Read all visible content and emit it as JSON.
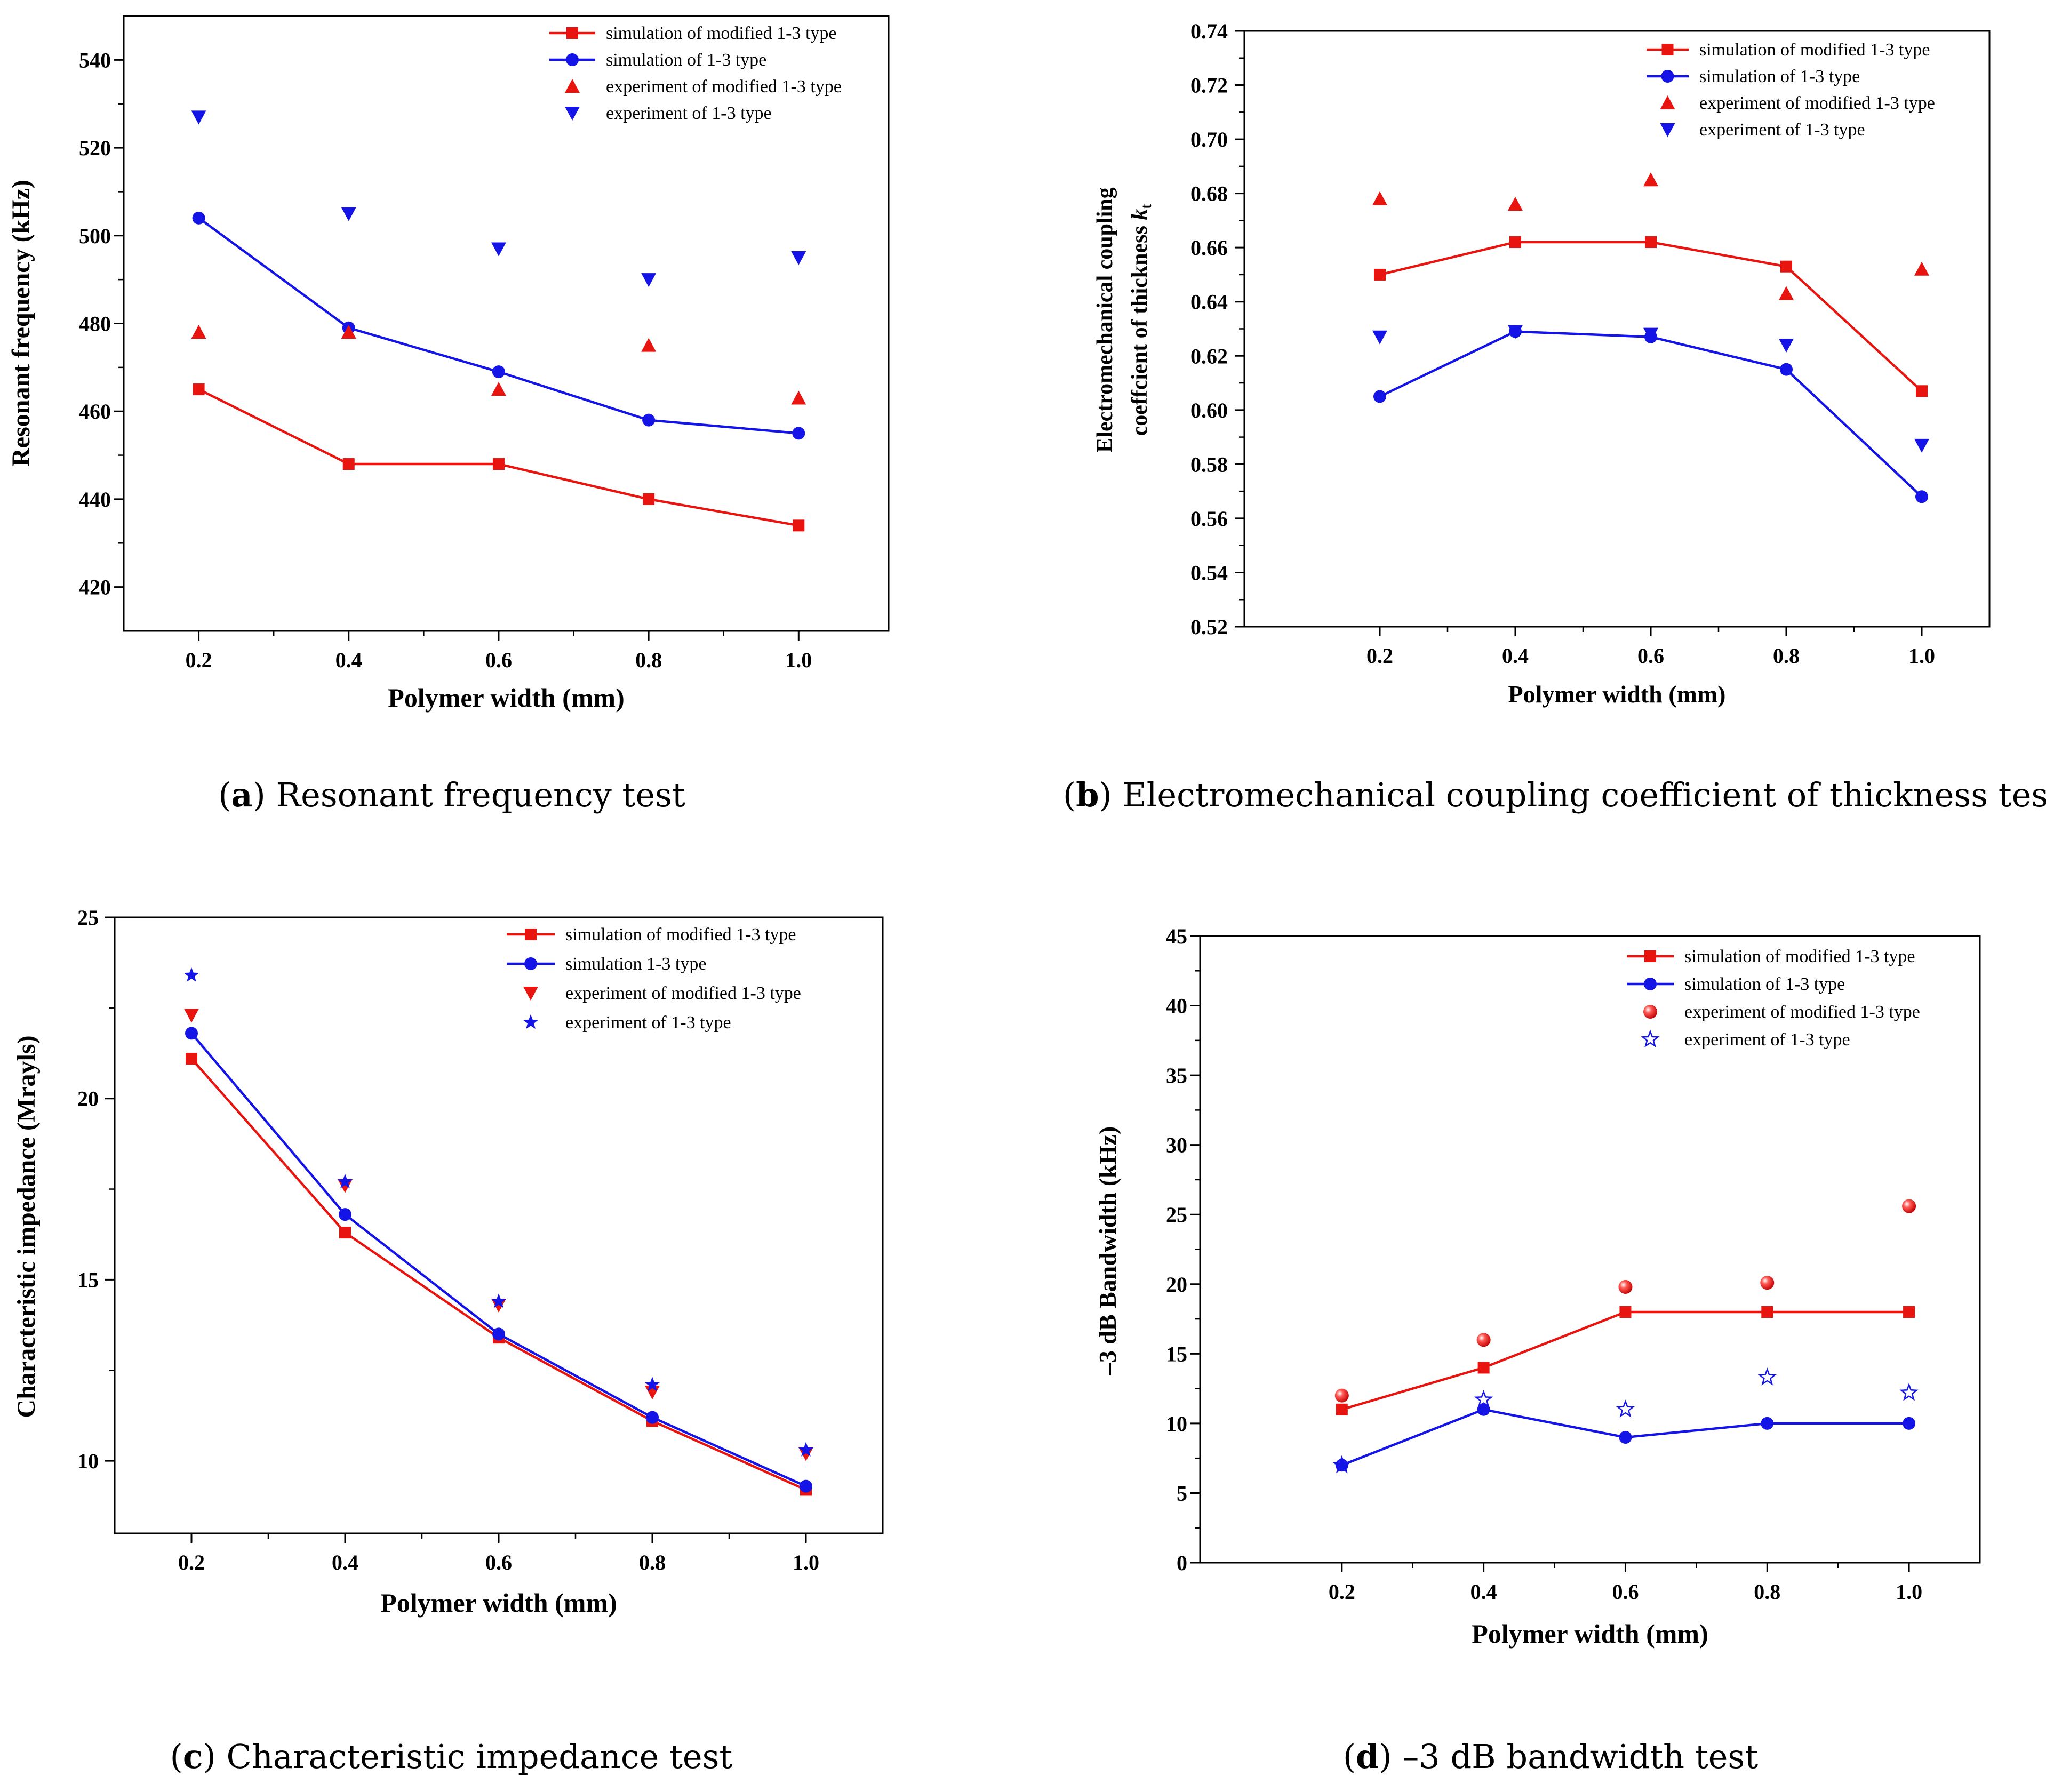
{
  "colors": {
    "red": "#e8140f",
    "blue": "#1414e6",
    "axis": "#000000"
  },
  "chart_data": [
    {
      "id": "a",
      "type": "line",
      "caption_letter": "a",
      "caption_text": ") Resonant frequency test",
      "caption_open": "(",
      "xlabel": "Polymer width (mm)",
      "ylabel": "Resonant frequency (kHz)",
      "xlim": [
        0.1,
        1.12
      ],
      "ylim": [
        410,
        550
      ],
      "xticks": [
        0.2,
        0.4,
        0.6,
        0.8,
        1.0
      ],
      "xtick_labels": [
        "0.2",
        "0.4",
        "0.6",
        "0.8",
        "1.0"
      ],
      "yticks": [
        420,
        440,
        460,
        480,
        500,
        520,
        540
      ],
      "ytick_labels": [
        "420",
        "440",
        "460",
        "480",
        "500",
        "520",
        "540"
      ],
      "x": [
        0.2,
        0.4,
        0.6,
        0.8,
        1.0
      ],
      "series": [
        {
          "name": "simulation of modified 1-3 type",
          "kind": "line",
          "marker": "square",
          "color": "red",
          "values": [
            465,
            448,
            448,
            440,
            434
          ]
        },
        {
          "name": "simulation of 1-3 type",
          "kind": "line",
          "marker": "circle",
          "color": "blue",
          "values": [
            504,
            479,
            469,
            458,
            455
          ]
        },
        {
          "name": "experiment of modified 1-3 type",
          "kind": "scatter",
          "marker": "triangle-up",
          "color": "red",
          "values": [
            478,
            478,
            465,
            475,
            463
          ]
        },
        {
          "name": "experiment of 1-3 type",
          "kind": "scatter",
          "marker": "triangle-down",
          "color": "blue",
          "values": [
            527,
            505,
            497,
            490,
            495
          ]
        }
      ],
      "legend_position": "top-right"
    },
    {
      "id": "b",
      "type": "line",
      "caption_letter": "b",
      "caption_text": ") Electromechanical coupling coefficient of thickness test",
      "caption_open": "(",
      "xlabel": "Polymer width (mm)",
      "ylabel": "Electromechanical coupling",
      "ylabel2": "coeffcient of thickness",
      "ylabel_symbol": "k",
      "ylabel_sub": "t",
      "xlim": [
        0.0,
        1.1
      ],
      "ylim": [
        0.52,
        0.74
      ],
      "xticks": [
        0.2,
        0.4,
        0.6,
        0.8,
        1.0
      ],
      "xtick_labels": [
        "0.2",
        "0.4",
        "0.6",
        "0.8",
        "1.0"
      ],
      "yticks": [
        0.52,
        0.54,
        0.56,
        0.58,
        0.6,
        0.62,
        0.64,
        0.66,
        0.68,
        0.7,
        0.72,
        0.74
      ],
      "ytick_labels": [
        "0.52",
        "0.54",
        "0.56",
        "0.58",
        "0.60",
        "0.62",
        "0.64",
        "0.66",
        "0.68",
        "0.70",
        "0.72",
        "0.74"
      ],
      "x": [
        0.2,
        0.4,
        0.6,
        0.8,
        1.0
      ],
      "series": [
        {
          "name": "simulation of modified 1-3 type",
          "kind": "line",
          "marker": "square",
          "color": "red",
          "values": [
            0.65,
            0.662,
            0.662,
            0.653,
            0.607
          ]
        },
        {
          "name": "simulation of 1-3 type",
          "kind": "line",
          "marker": "circle",
          "color": "blue",
          "values": [
            0.605,
            0.629,
            0.627,
            0.615,
            0.568
          ]
        },
        {
          "name": "experiment of modified 1-3 type",
          "kind": "scatter",
          "marker": "triangle-up",
          "color": "red",
          "values": [
            0.678,
            0.676,
            0.685,
            0.643,
            0.652
          ]
        },
        {
          "name": "experiment of 1-3 type",
          "kind": "scatter",
          "marker": "triangle-down",
          "color": "blue",
          "values": [
            0.627,
            0.629,
            0.628,
            0.624,
            0.587
          ]
        }
      ],
      "legend_position": "top-right"
    },
    {
      "id": "c",
      "type": "line",
      "caption_letter": "c",
      "caption_text": ") Characteristic impedance test",
      "caption_open": "(",
      "xlabel": "Polymer width (mm)",
      "ylabel": "Characteristic impedance (Mrayls)",
      "xlim": [
        0.1,
        1.1
      ],
      "ylim": [
        8,
        25
      ],
      "xticks": [
        0.2,
        0.4,
        0.6,
        0.8,
        1.0
      ],
      "xtick_labels": [
        "0.2",
        "0.4",
        "0.6",
        "0.8",
        "1.0"
      ],
      "yticks": [
        10,
        15,
        20,
        25
      ],
      "ytick_labels": [
        "10",
        "15",
        "20",
        "25"
      ],
      "x": [
        0.2,
        0.4,
        0.6,
        0.8,
        1.0
      ],
      "series": [
        {
          "name": "simulation of modified 1-3 type",
          "kind": "line",
          "marker": "square",
          "color": "red",
          "values": [
            21.1,
            16.3,
            13.4,
            11.1,
            9.2
          ]
        },
        {
          "name": "simulation 1-3 type",
          "kind": "line",
          "marker": "circle",
          "color": "blue",
          "values": [
            21.8,
            16.8,
            13.5,
            11.2,
            9.3
          ]
        },
        {
          "name": "experiment of modified 1-3 type",
          "kind": "scatter",
          "marker": "triangle-down",
          "color": "red",
          "values": [
            22.3,
            17.6,
            14.3,
            11.9,
            10.2
          ]
        },
        {
          "name": "experiment of 1-3 type",
          "kind": "scatter",
          "marker": "star",
          "color": "blue",
          "values": [
            23.4,
            17.7,
            14.4,
            12.1,
            10.3
          ]
        }
      ],
      "legend_position": "top-right"
    },
    {
      "id": "d",
      "type": "line",
      "caption_letter": "d",
      "caption_text": ") –3 dB bandwidth test",
      "caption_open": "(",
      "xlabel": "Polymer width (mm)",
      "ylabel": "–3 dB Bandwidth (kHz)",
      "xlim": [
        0.0,
        1.1
      ],
      "ylim": [
        0,
        45
      ],
      "xticks": [
        0.2,
        0.4,
        0.6,
        0.8,
        1.0
      ],
      "xtick_labels": [
        "0.2",
        "0.4",
        "0.6",
        "0.8",
        "1.0"
      ],
      "yticks": [
        0,
        5,
        10,
        15,
        20,
        25,
        30,
        35,
        40,
        45
      ],
      "ytick_labels": [
        "0",
        "5",
        "10",
        "15",
        "20",
        "25",
        "30",
        "35",
        "40",
        "45"
      ],
      "x": [
        0.2,
        0.4,
        0.6,
        0.8,
        1.0
      ],
      "series": [
        {
          "name": "simulation of modified 1-3 type",
          "kind": "line",
          "marker": "square",
          "color": "red",
          "values": [
            11,
            14,
            18,
            18,
            18
          ]
        },
        {
          "name": "simulation of 1-3 type",
          "kind": "line",
          "marker": "circle",
          "color": "blue",
          "values": [
            7,
            11,
            9,
            10,
            10
          ]
        },
        {
          "name": "experiment of modified 1-3 type",
          "kind": "scatter",
          "marker": "sphere",
          "color": "red",
          "values": [
            12,
            16,
            19.8,
            20.1,
            25.6
          ]
        },
        {
          "name": "experiment of 1-3 type",
          "kind": "scatter",
          "marker": "star-open",
          "color": "blue",
          "values": [
            7,
            11.7,
            11,
            13.3,
            12.2
          ]
        }
      ],
      "legend_position": "top-right"
    }
  ]
}
